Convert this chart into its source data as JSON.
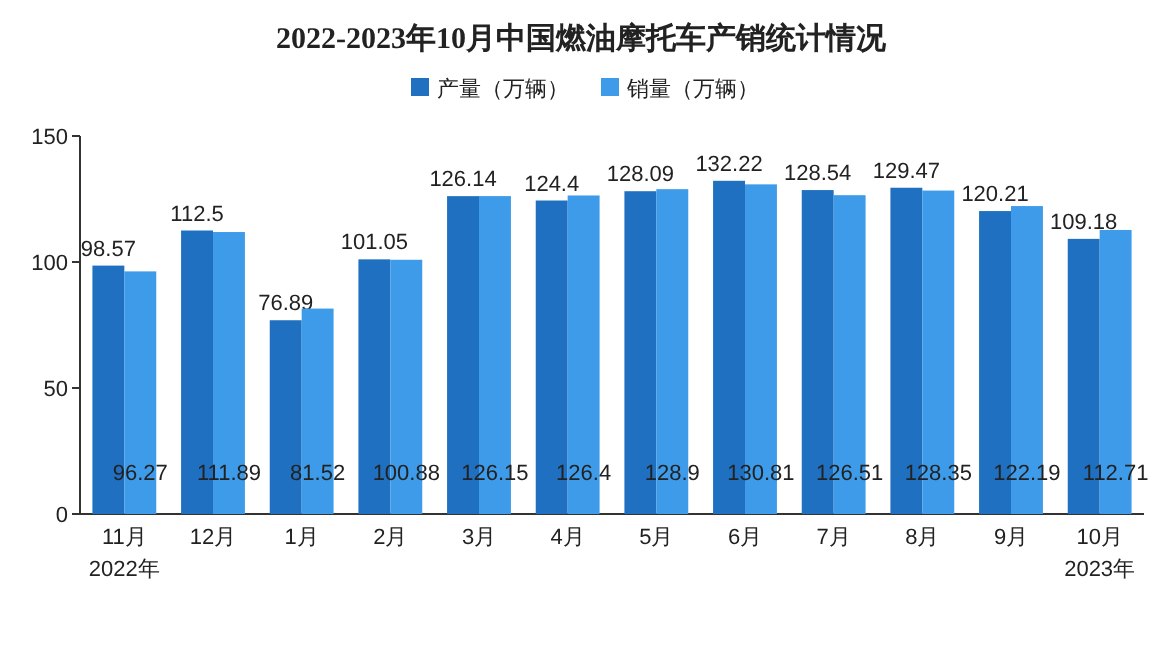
{
  "chart_data": {
    "type": "bar",
    "title": "2022-2023年10月中国燃油摩托车产销统计情况",
    "categories": [
      "11月\n2022年",
      "12月",
      "1月",
      "2月",
      "3月",
      "4月",
      "5月",
      "6月",
      "7月",
      "8月",
      "9月",
      "10月\n2023年"
    ],
    "series": [
      {
        "name": "产量（万辆）",
        "color": "#1f70c1",
        "values": [
          98.57,
          112.5,
          76.89,
          101.05,
          126.14,
          124.4,
          128.09,
          132.22,
          128.54,
          129.47,
          120.21,
          109.18
        ]
      },
      {
        "name": "销量（万辆）",
        "color": "#3d9be9",
        "values": [
          96.27,
          111.89,
          81.52,
          100.88,
          126.15,
          126.4,
          128.9,
          130.81,
          126.51,
          128.35,
          122.19,
          112.71
        ]
      }
    ],
    "ylim": [
      0,
      150
    ],
    "yticks": [
      0,
      50,
      100,
      150
    ],
    "data_labels": true,
    "legend": "top",
    "grid": false
  }
}
